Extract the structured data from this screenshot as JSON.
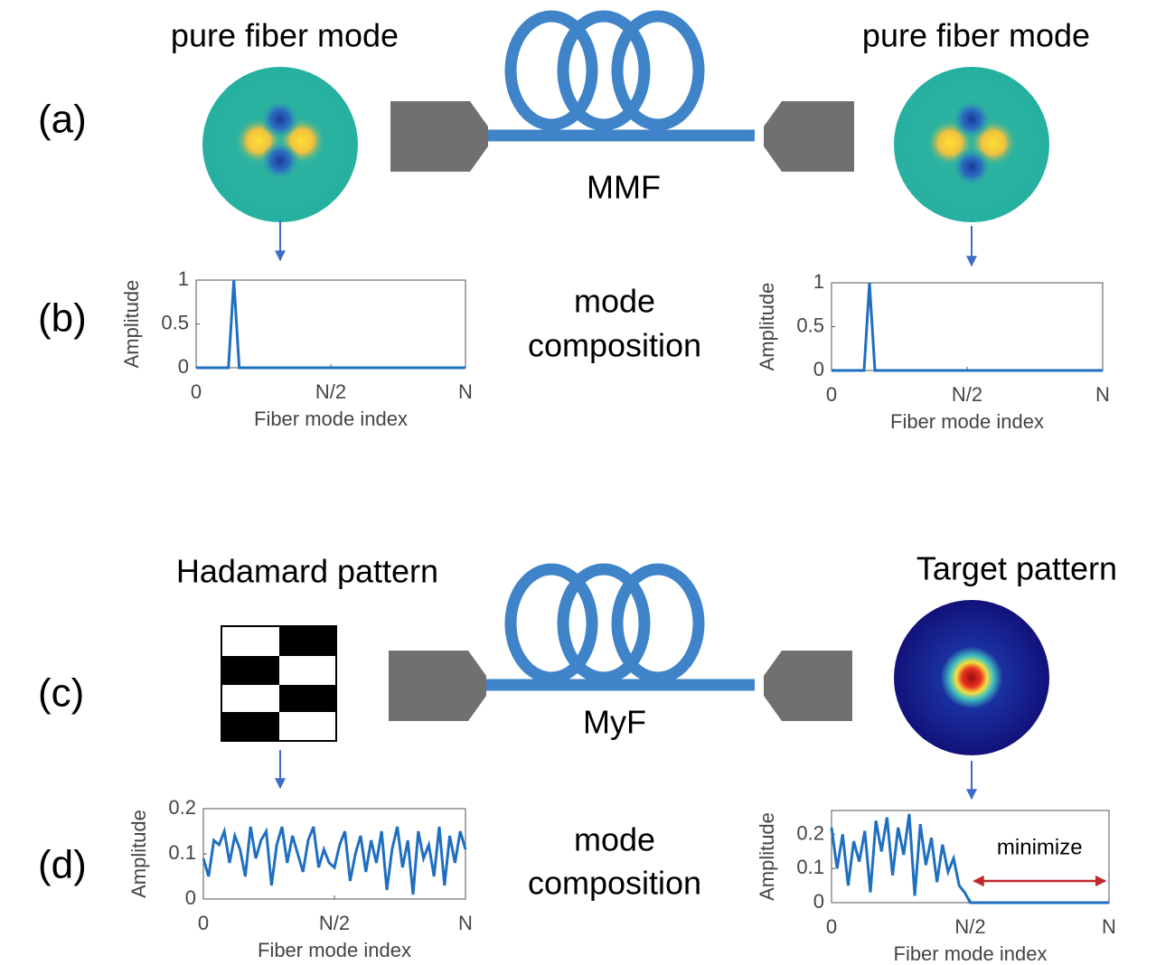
{
  "panels": {
    "a": {
      "label": "(a)",
      "left_title": "pure fiber mode",
      "right_title": "pure fiber mode",
      "fiber": "MMF"
    },
    "b": {
      "label": "(b)",
      "center_text": [
        "mode",
        "composition"
      ]
    },
    "c": {
      "label": "(c)",
      "left_title": "Hadamard pattern",
      "right_title": "Target pattern",
      "fiber": "MyF"
    },
    "d": {
      "label": "(d)",
      "center_text": [
        "mode",
        "composition"
      ]
    }
  },
  "chart_data": [
    {
      "type": "line",
      "xlabel": "Fiber mode index",
      "ylabel": "Amplitude",
      "color": "#1f6fc0",
      "x": [
        0,
        12,
        14,
        16,
        100
      ],
      "values": [
        0,
        0,
        1,
        0,
        0
      ],
      "xlim": [
        0,
        100
      ],
      "ylim": [
        0,
        1
      ],
      "xticks": [
        {
          "value": 0,
          "label": "0"
        },
        {
          "value": 50,
          "label": "N/2"
        },
        {
          "value": 100,
          "label": "N"
        }
      ],
      "yticks": [
        0,
        0.5,
        1
      ]
    },
    {
      "type": "line",
      "xlabel": "Fiber mode index",
      "ylabel": "Amplitude",
      "color": "#1f6fc0",
      "x": [
        0,
        12,
        14,
        16,
        100
      ],
      "values": [
        0,
        0,
        1,
        0,
        0
      ],
      "xlim": [
        0,
        100
      ],
      "ylim": [
        0,
        1
      ],
      "xticks": [
        {
          "value": 0,
          "label": "0"
        },
        {
          "value": 50,
          "label": "N/2"
        },
        {
          "value": 100,
          "label": "N"
        }
      ],
      "yticks": [
        0,
        0.5,
        1
      ]
    },
    {
      "type": "line",
      "xlabel": "Fiber mode index",
      "ylabel": "Amplitude",
      "color": "#1f6fc0",
      "x": [
        0,
        2,
        4,
        6,
        8,
        10,
        12,
        14,
        16,
        18,
        20,
        22,
        24,
        26,
        28,
        30,
        32,
        34,
        36,
        38,
        40,
        42,
        44,
        46,
        48,
        50,
        52,
        54,
        56,
        58,
        60,
        62,
        64,
        66,
        68,
        70,
        72,
        74,
        76,
        78,
        80,
        82,
        84,
        86,
        88,
        90,
        92,
        94,
        96,
        98,
        100
      ],
      "values": [
        0.09,
        0.05,
        0.13,
        0.12,
        0.15,
        0.08,
        0.14,
        0.11,
        0.05,
        0.16,
        0.09,
        0.13,
        0.15,
        0.03,
        0.12,
        0.16,
        0.08,
        0.14,
        0.1,
        0.06,
        0.13,
        0.16,
        0.07,
        0.11,
        0.08,
        0.07,
        0.12,
        0.15,
        0.04,
        0.1,
        0.14,
        0.06,
        0.13,
        0.08,
        0.15,
        0.02,
        0.11,
        0.16,
        0.07,
        0.13,
        0.01,
        0.15,
        0.09,
        0.12,
        0.05,
        0.16,
        0.03,
        0.14,
        0.08,
        0.15,
        0.11
      ],
      "xlim": [
        0,
        100
      ],
      "ylim": [
        0,
        0.2
      ],
      "xticks": [
        {
          "value": 0,
          "label": "0"
        },
        {
          "value": 50,
          "label": "N/2"
        },
        {
          "value": 100,
          "label": "N"
        }
      ],
      "yticks": [
        0,
        0.1,
        0.2
      ]
    },
    {
      "type": "line",
      "xlabel": "Fiber mode index",
      "ylabel": "Amplitude",
      "color": "#1f6fc0",
      "annotation": "minimize",
      "x": [
        0,
        2,
        4,
        6,
        8,
        10,
        12,
        14,
        16,
        18,
        20,
        22,
        24,
        26,
        28,
        30,
        32,
        34,
        36,
        38,
        40,
        42,
        44,
        46,
        48,
        50,
        100
      ],
      "values": [
        0.22,
        0.1,
        0.2,
        0.05,
        0.18,
        0.12,
        0.21,
        0.03,
        0.24,
        0.15,
        0.25,
        0.08,
        0.22,
        0.14,
        0.26,
        0.02,
        0.23,
        0.11,
        0.19,
        0.06,
        0.17,
        0.09,
        0.13,
        0.05,
        0.03,
        0,
        0
      ],
      "xlim": [
        0,
        100
      ],
      "ylim": [
        0,
        0.27
      ],
      "xticks": [
        {
          "value": 0,
          "label": "0"
        },
        {
          "value": 50,
          "label": "N/2"
        },
        {
          "value": 100,
          "label": "N"
        }
      ],
      "yticks": [
        0,
        0.1,
        0.2
      ]
    }
  ]
}
